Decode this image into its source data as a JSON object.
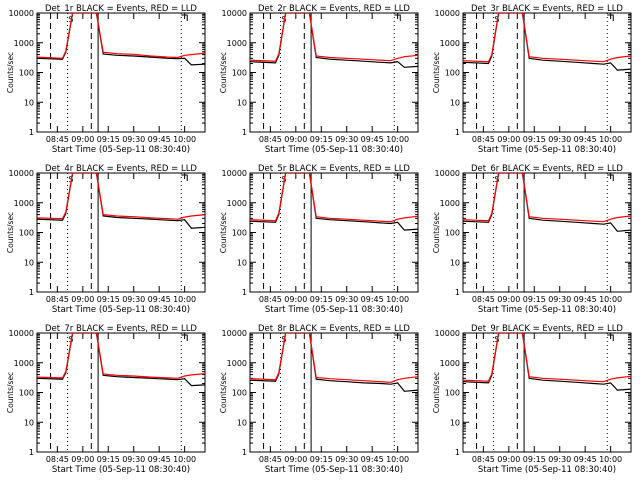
{
  "window": {
    "title": ""
  },
  "chart_data": [
    {
      "type": "line",
      "title": "Det_1r BLACK = Events, RED = LLD",
      "xlabel": "Start Time (05-Sep-11 08:30:40)",
      "ylabel": "Counts/sec",
      "log_y": true,
      "ylim": [
        1,
        10000
      ],
      "xlim_minutes": [
        513,
        612
      ],
      "x_ticks": [
        "08:45",
        "09:00",
        "09:15",
        "09:30",
        "09:45",
        "10:00"
      ],
      "y_ticks": [
        "1",
        "10",
        "100",
        "1000",
        "10000"
      ],
      "legend": "none",
      "marker_label": "S",
      "colors": {
        "events": "#000000",
        "lld": "#ff0000"
      },
      "series": [
        {
          "name": "Events",
          "x": [
            513,
            528,
            530,
            534,
            538,
            548,
            552,
            560,
            570,
            580,
            590,
            596,
            600,
            604,
            612
          ],
          "y": [
            300,
            280,
            480,
            10000,
            10000,
            10000,
            420,
            380,
            360,
            330,
            300,
            290,
            300,
            180,
            190
          ]
        },
        {
          "name": "LLD",
          "x": [
            513,
            528,
            530,
            534,
            538,
            548,
            552,
            560,
            570,
            580,
            590,
            596,
            600,
            604,
            612
          ],
          "y": [
            330,
            300,
            520,
            10000,
            10000,
            10000,
            480,
            430,
            410,
            360,
            330,
            320,
            380,
            400,
            450
          ]
        }
      ]
    },
    {
      "type": "line",
      "title": "Det_2r BLACK = Events, RED = LLD",
      "xlabel": "Start Time (05-Sep-11 08:30:40)",
      "ylabel": "Counts/sec",
      "log_y": true,
      "ylim": [
        1,
        10000
      ],
      "xlim_minutes": [
        513,
        612
      ],
      "x_ticks": [
        "08:45",
        "09:00",
        "09:15",
        "09:30",
        "09:45",
        "10:00"
      ],
      "y_ticks": [
        "1",
        "10",
        "100",
        "1000",
        "10000"
      ],
      "legend": "none",
      "marker_label": "S",
      "colors": {
        "events": "#000000",
        "lld": "#ff0000"
      },
      "series": [
        {
          "name": "Events",
          "x": [
            513,
            528,
            530,
            534,
            538,
            548,
            552,
            560,
            570,
            580,
            590,
            596,
            600,
            604,
            612
          ],
          "y": [
            230,
            210,
            380,
            10000,
            10000,
            10000,
            320,
            280,
            260,
            240,
            220,
            210,
            230,
            150,
            160
          ]
        },
        {
          "name": "LLD",
          "x": [
            513,
            528,
            530,
            534,
            538,
            548,
            552,
            560,
            570,
            580,
            590,
            596,
            600,
            604,
            612
          ],
          "y": [
            260,
            240,
            420,
            10000,
            10000,
            10000,
            360,
            320,
            300,
            280,
            260,
            250,
            300,
            340,
            380
          ]
        }
      ]
    },
    {
      "type": "line",
      "title": "Det_3r BLACK = Events, RED = LLD",
      "xlabel": "Start Time (05-Sep-11 08:30:40)",
      "ylabel": "Counts/sec",
      "log_y": true,
      "ylim": [
        1,
        10000
      ],
      "xlim_minutes": [
        513,
        612
      ],
      "x_ticks": [
        "08:45",
        "09:00",
        "09:15",
        "09:30",
        "09:45",
        "10:00"
      ],
      "y_ticks": [
        "1",
        "10",
        "100",
        "1000",
        "10000"
      ],
      "legend": "none",
      "marker_label": "S",
      "colors": {
        "events": "#000000",
        "lld": "#ff0000"
      },
      "series": [
        {
          "name": "Events",
          "x": [
            513,
            528,
            530,
            534,
            538,
            548,
            552,
            560,
            570,
            580,
            590,
            596,
            600,
            604,
            612
          ],
          "y": [
            220,
            200,
            360,
            10000,
            10000,
            10000,
            300,
            260,
            240,
            220,
            200,
            190,
            210,
            120,
            130
          ]
        },
        {
          "name": "LLD",
          "x": [
            513,
            528,
            530,
            534,
            538,
            548,
            552,
            560,
            570,
            580,
            590,
            596,
            600,
            604,
            612
          ],
          "y": [
            250,
            230,
            400,
            10000,
            10000,
            10000,
            340,
            300,
            280,
            260,
            240,
            230,
            280,
            320,
            360
          ]
        }
      ]
    },
    {
      "type": "line",
      "title": "Det_4r BLACK = Events, RED = LLD",
      "xlabel": "Start Time (05-Sep-11 08:30:40)",
      "ylabel": "Counts/sec",
      "log_y": true,
      "ylim": [
        1,
        10000
      ],
      "xlim_minutes": [
        513,
        612
      ],
      "x_ticks": [
        "08:45",
        "09:00",
        "09:15",
        "09:30",
        "09:45",
        "10:00"
      ],
      "y_ticks": [
        "1",
        "10",
        "100",
        "1000",
        "10000"
      ],
      "legend": "none",
      "marker_label": "S",
      "colors": {
        "events": "#000000",
        "lld": "#ff0000"
      },
      "series": [
        {
          "name": "Events",
          "x": [
            513,
            528,
            530,
            534,
            538,
            548,
            552,
            560,
            570,
            580,
            590,
            596,
            600,
            604,
            612
          ],
          "y": [
            280,
            260,
            440,
            10000,
            10000,
            10000,
            360,
            320,
            300,
            280,
            260,
            250,
            270,
            140,
            150
          ]
        },
        {
          "name": "LLD",
          "x": [
            513,
            528,
            530,
            534,
            538,
            548,
            552,
            560,
            570,
            580,
            590,
            596,
            600,
            604,
            612
          ],
          "y": [
            310,
            290,
            480,
            10000,
            10000,
            10000,
            400,
            360,
            340,
            310,
            290,
            280,
            330,
            360,
            400
          ]
        }
      ]
    },
    {
      "type": "line",
      "title": "Det_5r BLACK = Events, RED = LLD",
      "xlabel": "Start Time (05-Sep-11 08:30:40)",
      "ylabel": "Counts/sec",
      "log_y": true,
      "ylim": [
        1,
        10000
      ],
      "xlim_minutes": [
        513,
        612
      ],
      "x_ticks": [
        "08:45",
        "09:00",
        "09:15",
        "09:30",
        "09:45",
        "10:00"
      ],
      "y_ticks": [
        "1",
        "10",
        "100",
        "1000",
        "10000"
      ],
      "legend": "none",
      "marker_label": "S",
      "colors": {
        "events": "#000000",
        "lld": "#ff0000"
      },
      "series": [
        {
          "name": "Events",
          "x": [
            513,
            528,
            530,
            534,
            538,
            548,
            552,
            560,
            570,
            580,
            590,
            596,
            600,
            604,
            612
          ],
          "y": [
            240,
            220,
            400,
            10000,
            10000,
            10000,
            300,
            270,
            250,
            230,
            210,
            200,
            220,
            120,
            130
          ]
        },
        {
          "name": "LLD",
          "x": [
            513,
            528,
            530,
            534,
            538,
            548,
            552,
            560,
            570,
            580,
            590,
            596,
            600,
            604,
            612
          ],
          "y": [
            270,
            250,
            440,
            10000,
            10000,
            10000,
            340,
            300,
            280,
            260,
            240,
            230,
            280,
            310,
            350
          ]
        }
      ]
    },
    {
      "type": "line",
      "title": "Det_6r BLACK = Events, RED = LLD",
      "xlabel": "Start Time (05-Sep-11 08:30:40)",
      "ylabel": "Counts/sec",
      "log_y": true,
      "ylim": [
        1,
        10000
      ],
      "xlim_minutes": [
        513,
        612
      ],
      "x_ticks": [
        "08:45",
        "09:00",
        "09:15",
        "09:30",
        "09:45",
        "10:00"
      ],
      "y_ticks": [
        "1",
        "10",
        "100",
        "1000",
        "10000"
      ],
      "legend": "none",
      "marker_label": "S",
      "colors": {
        "events": "#000000",
        "lld": "#ff0000"
      },
      "series": [
        {
          "name": "Events",
          "x": [
            513,
            528,
            530,
            534,
            538,
            548,
            552,
            560,
            570,
            580,
            590,
            596,
            600,
            604,
            612
          ],
          "y": [
            240,
            220,
            400,
            10000,
            10000,
            10000,
            300,
            260,
            240,
            220,
            200,
            190,
            210,
            110,
            120
          ]
        },
        {
          "name": "LLD",
          "x": [
            513,
            528,
            530,
            534,
            538,
            548,
            552,
            560,
            570,
            580,
            590,
            596,
            600,
            604,
            612
          ],
          "y": [
            270,
            250,
            440,
            10000,
            10000,
            10000,
            340,
            300,
            280,
            260,
            240,
            230,
            280,
            320,
            360
          ]
        }
      ]
    },
    {
      "type": "line",
      "title": "Det_7r BLACK = Events, RED = LLD",
      "xlabel": "Start Time (05-Sep-11 08:30:40)",
      "ylabel": "Counts/sec",
      "log_y": true,
      "ylim": [
        1,
        10000
      ],
      "xlim_minutes": [
        513,
        612
      ],
      "x_ticks": [
        "08:45",
        "09:00",
        "09:15",
        "09:30",
        "09:45",
        "10:00"
      ],
      "y_ticks": [
        "1",
        "10",
        "100",
        "1000",
        "10000"
      ],
      "legend": "none",
      "marker_label": "S",
      "colors": {
        "events": "#000000",
        "lld": "#ff0000"
      },
      "series": [
        {
          "name": "Events",
          "x": [
            513,
            528,
            530,
            534,
            538,
            548,
            552,
            560,
            570,
            580,
            590,
            596,
            600,
            604,
            612
          ],
          "y": [
            300,
            280,
            460,
            10000,
            10000,
            10000,
            380,
            340,
            320,
            300,
            280,
            270,
            290,
            170,
            180
          ]
        },
        {
          "name": "LLD",
          "x": [
            513,
            528,
            530,
            534,
            538,
            548,
            552,
            560,
            570,
            580,
            590,
            596,
            600,
            604,
            612
          ],
          "y": [
            330,
            310,
            500,
            10000,
            10000,
            10000,
            420,
            380,
            360,
            330,
            310,
            300,
            360,
            390,
            430
          ]
        }
      ]
    },
    {
      "type": "line",
      "title": "Det_8r BLACK = Events, RED = LLD",
      "xlabel": "Start Time (05-Sep-11 08:30:40)",
      "ylabel": "Counts/sec",
      "log_y": true,
      "ylim": [
        1,
        10000
      ],
      "xlim_minutes": [
        513,
        612
      ],
      "x_ticks": [
        "08:45",
        "09:00",
        "09:15",
        "09:30",
        "09:45",
        "10:00"
      ],
      "y_ticks": [
        "1",
        "10",
        "100",
        "1000",
        "10000"
      ],
      "legend": "none",
      "marker_label": "S",
      "colors": {
        "events": "#000000",
        "lld": "#ff0000"
      },
      "series": [
        {
          "name": "Events",
          "x": [
            513,
            528,
            530,
            534,
            538,
            548,
            552,
            560,
            570,
            580,
            590,
            596,
            600,
            604,
            612
          ],
          "y": [
            260,
            240,
            420,
            10000,
            10000,
            10000,
            280,
            250,
            230,
            210,
            200,
            190,
            210,
            110,
            120
          ]
        },
        {
          "name": "LLD",
          "x": [
            513,
            528,
            530,
            534,
            538,
            548,
            552,
            560,
            570,
            580,
            590,
            596,
            600,
            604,
            612
          ],
          "y": [
            290,
            270,
            460,
            10000,
            10000,
            10000,
            320,
            290,
            270,
            250,
            230,
            220,
            270,
            300,
            340
          ]
        }
      ]
    },
    {
      "type": "line",
      "title": "Det_9r BLACK = Events, RED = LLD",
      "xlabel": "Start Time (05-Sep-11 08:30:40)",
      "ylabel": "Counts/sec",
      "log_y": true,
      "ylim": [
        1,
        10000
      ],
      "xlim_minutes": [
        513,
        612
      ],
      "x_ticks": [
        "08:45",
        "09:00",
        "09:15",
        "09:30",
        "09:45",
        "10:00"
      ],
      "y_ticks": [
        "1",
        "10",
        "100",
        "1000",
        "10000"
      ],
      "legend": "none",
      "marker_label": "S",
      "colors": {
        "events": "#000000",
        "lld": "#ff0000"
      },
      "series": [
        {
          "name": "Events",
          "x": [
            513,
            528,
            530,
            534,
            538,
            548,
            552,
            560,
            570,
            580,
            590,
            596,
            600,
            604,
            612
          ],
          "y": [
            230,
            210,
            380,
            10000,
            10000,
            10000,
            300,
            260,
            240,
            220,
            200,
            190,
            210,
            120,
            130
          ]
        },
        {
          "name": "LLD",
          "x": [
            513,
            528,
            530,
            534,
            538,
            548,
            552,
            560,
            570,
            580,
            590,
            596,
            600,
            604,
            612
          ],
          "y": [
            260,
            240,
            420,
            10000,
            10000,
            10000,
            340,
            300,
            280,
            260,
            240,
            230,
            280,
            310,
            350
          ]
        }
      ]
    }
  ]
}
